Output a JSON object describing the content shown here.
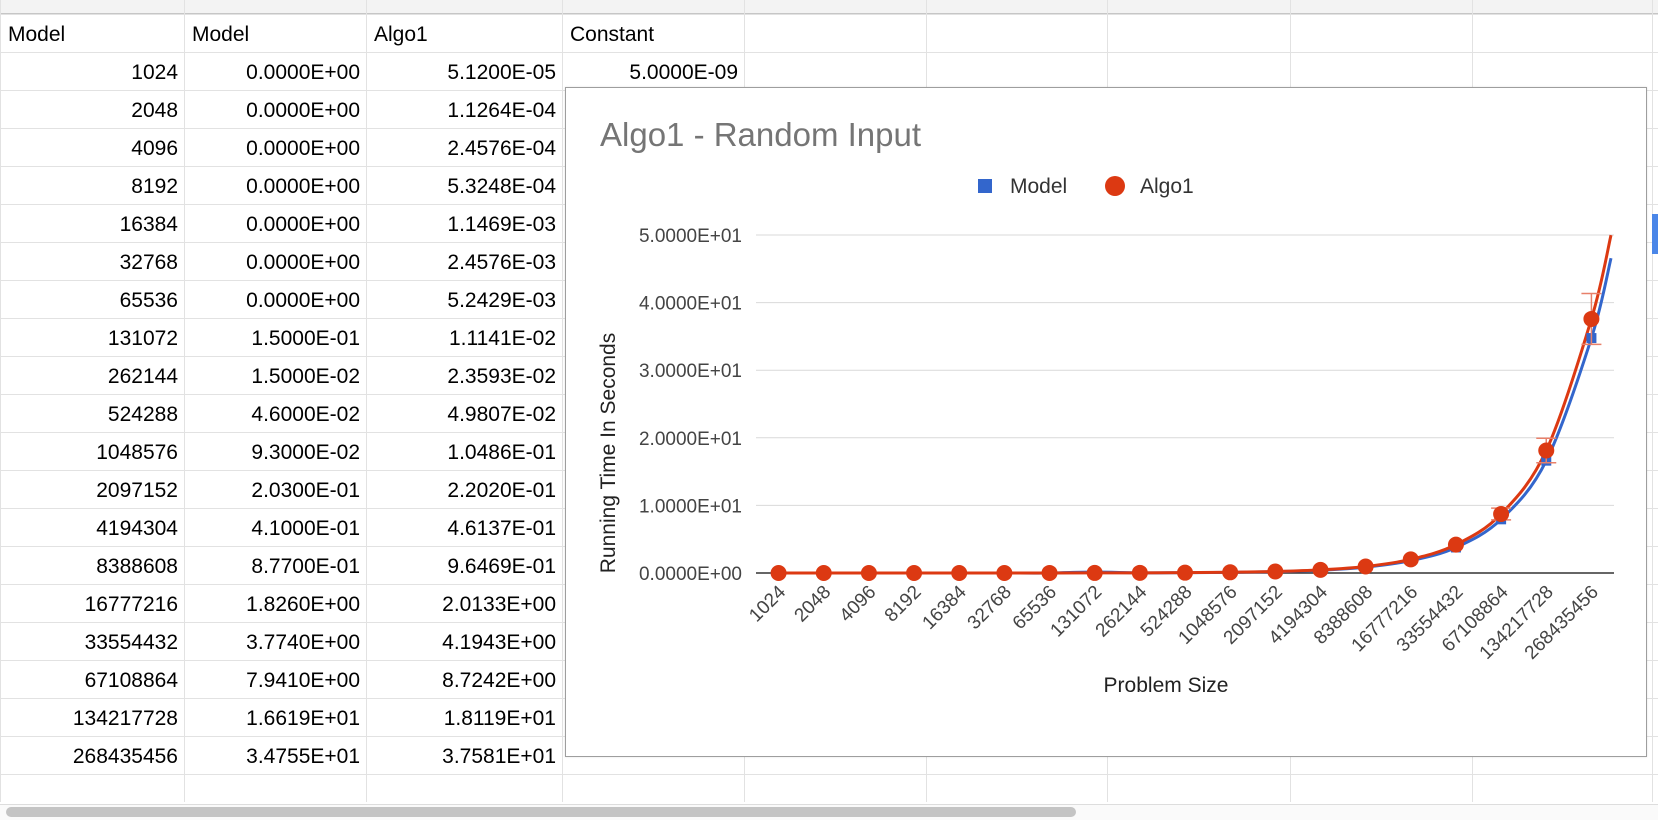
{
  "sheet": {
    "headers": [
      "Model",
      "Model",
      "Algo1",
      "Constant"
    ],
    "constant_value": "5.0000E-09",
    "rows": [
      [
        "1024",
        "0.0000E+00",
        "5.1200E-05"
      ],
      [
        "2048",
        "0.0000E+00",
        "1.1264E-04"
      ],
      [
        "4096",
        "0.0000E+00",
        "2.4576E-04"
      ],
      [
        "8192",
        "0.0000E+00",
        "5.3248E-04"
      ],
      [
        "16384",
        "0.0000E+00",
        "1.1469E-03"
      ],
      [
        "32768",
        "0.0000E+00",
        "2.4576E-03"
      ],
      [
        "65536",
        "0.0000E+00",
        "5.2429E-03"
      ],
      [
        "131072",
        "1.5000E-01",
        "1.1141E-02"
      ],
      [
        "262144",
        "1.5000E-02",
        "2.3593E-02"
      ],
      [
        "524288",
        "4.6000E-02",
        "4.9807E-02"
      ],
      [
        "1048576",
        "9.3000E-02",
        "1.0486E-01"
      ],
      [
        "2097152",
        "2.0300E-01",
        "2.2020E-01"
      ],
      [
        "4194304",
        "4.1000E-01",
        "4.6137E-01"
      ],
      [
        "8388608",
        "8.7700E-01",
        "9.6469E-01"
      ],
      [
        "16777216",
        "1.8260E+00",
        "2.0133E+00"
      ],
      [
        "33554432",
        "3.7740E+00",
        "4.1943E+00"
      ],
      [
        "67108864",
        "7.9410E+00",
        "8.7242E+00"
      ],
      [
        "134217728",
        "1.6619E+01",
        "1.8119E+01"
      ],
      [
        "268435456",
        "3.4755E+01",
        "3.7581E+01"
      ]
    ]
  },
  "chart_data": {
    "type": "line",
    "title": "Algo1 - Random Input",
    "xlabel": "Problem Size",
    "ylabel": "Running Time In Seconds",
    "legend_position": "top",
    "categories": [
      "1024",
      "2048",
      "4096",
      "8192",
      "16384",
      "32768",
      "65536",
      "131072",
      "262144",
      "524288",
      "1048576",
      "2097152",
      "4194304",
      "8388608",
      "16777216",
      "33554432",
      "67108864",
      "134217728",
      "268435456"
    ],
    "ylim": [
      0,
      50
    ],
    "yticks": [
      "0.0000E+00",
      "1.0000E+01",
      "2.0000E+01",
      "3.0000E+01",
      "4.0000E+01",
      "5.0000E+01"
    ],
    "series": [
      {
        "name": "Model",
        "marker": "square",
        "color": "#3366cc",
        "values": [
          0,
          0,
          0,
          0,
          0,
          0,
          0,
          0.15,
          0.015,
          0.046,
          0.093,
          0.203,
          0.41,
          0.877,
          1.826,
          3.774,
          7.941,
          16.619,
          34.755
        ]
      },
      {
        "name": "Algo1",
        "marker": "circle",
        "color": "#dc3912",
        "values": [
          5.12e-05,
          0.00011264,
          0.00024576,
          0.00053248,
          0.0011469,
          0.0024576,
          0.0052429,
          0.011141,
          0.023593,
          0.049807,
          0.10486,
          0.2202,
          0.46137,
          0.96469,
          2.0133,
          4.1943,
          8.7242,
          18.119,
          37.581
        ]
      }
    ]
  }
}
